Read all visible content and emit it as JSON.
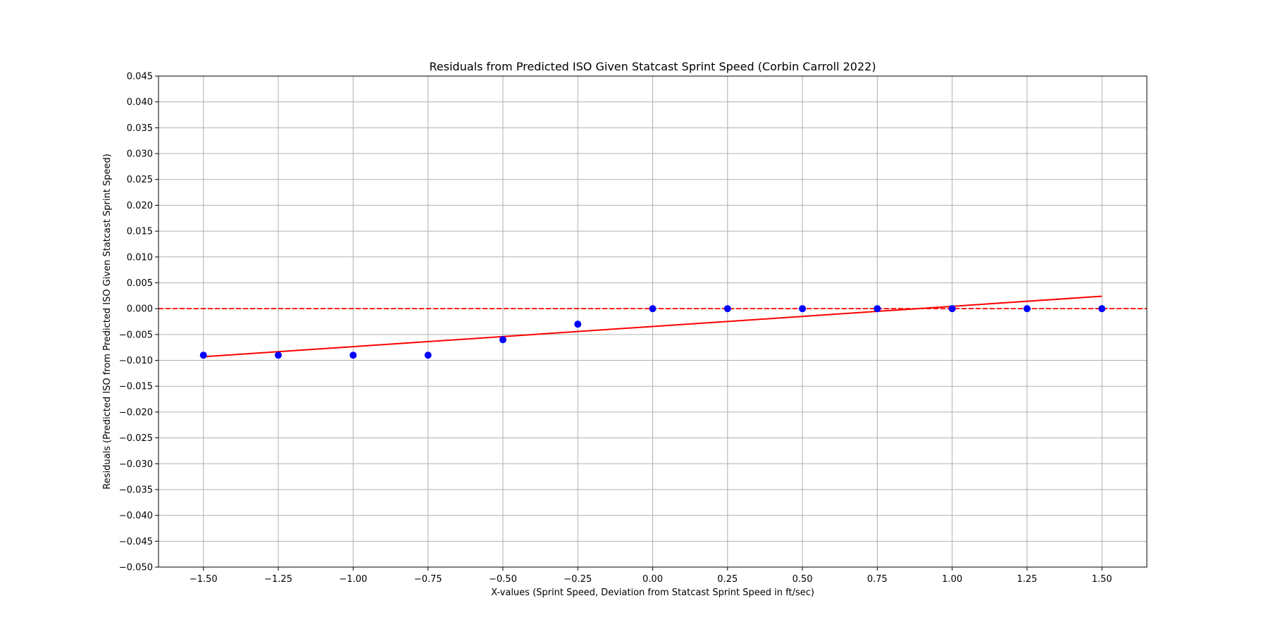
{
  "chart_data": {
    "type": "scatter",
    "title": "Residuals from Predicted ISO Given Statcast Sprint Speed (Corbin Carroll 2022)",
    "xlabel": "X-values (Sprint Speed, Deviation from Statcast Sprint Speed in ft/sec)",
    "ylabel": "Residuals (Predicted ISO from Predicted ISO Given Statcast Sprint Speed)",
    "xlim": [
      -1.65,
      1.65
    ],
    "ylim": [
      -0.05,
      0.045
    ],
    "grid": true,
    "x_ticks": [
      -1.5,
      -1.25,
      -1.0,
      -0.75,
      -0.5,
      -0.25,
      0.0,
      0.25,
      0.5,
      0.75,
      1.0,
      1.25,
      1.5
    ],
    "x_tick_labels": [
      "−1.50",
      "−1.25",
      "−1.00",
      "−0.75",
      "−0.50",
      "−0.25",
      "0.00",
      "0.25",
      "0.50",
      "0.75",
      "1.00",
      "1.25",
      "1.50"
    ],
    "y_ticks": [
      0.045,
      0.04,
      0.035,
      0.03,
      0.025,
      0.02,
      0.015,
      0.01,
      0.005,
      0.0,
      -0.005,
      -0.01,
      -0.015,
      -0.02,
      -0.025,
      -0.03,
      -0.035,
      -0.04,
      -0.045,
      -0.05
    ],
    "y_tick_labels": [
      "0.045",
      "0.040",
      "0.035",
      "0.030",
      "0.025",
      "0.020",
      "0.015",
      "0.010",
      "0.005",
      "0.000",
      "−0.005",
      "−0.010",
      "−0.015",
      "−0.020",
      "−0.025",
      "−0.030",
      "−0.035",
      "−0.040",
      "−0.045",
      "−0.050"
    ],
    "series": [
      {
        "name": "Residuals",
        "kind": "scatter",
        "color": "#0000ff",
        "x": [
          -1.5,
          -1.25,
          -1.0,
          -0.75,
          -0.5,
          -0.25,
          0.0,
          0.25,
          0.5,
          0.75,
          1.0,
          1.25,
          1.5
        ],
        "y": [
          -0.009,
          -0.009,
          -0.009,
          -0.009,
          -0.006,
          -0.003,
          0.0,
          0.0,
          0.0,
          0.0,
          0.0,
          0.0,
          0.0
        ]
      },
      {
        "name": "Trend line",
        "kind": "line",
        "color": "#ff0000",
        "x": [
          -1.5,
          1.5
        ],
        "y": [
          -0.0093,
          0.0024
        ]
      },
      {
        "name": "Zero line",
        "kind": "hline",
        "color": "#ff0000",
        "style": "dashed",
        "y": 0.0
      }
    ]
  }
}
